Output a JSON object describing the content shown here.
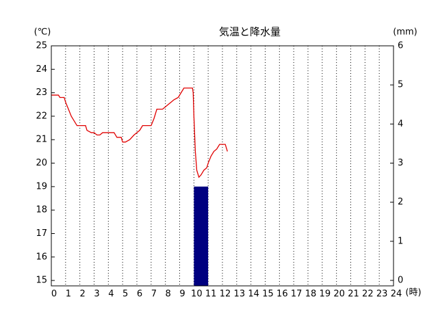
{
  "chart_data": {
    "type": "line_bar",
    "title": "気温と降水量",
    "y_label": "(℃)",
    "y2_label": "(mm)",
    "x_label": "(時)",
    "xlim": [
      0,
      24
    ],
    "xticks": [
      0,
      1,
      2,
      3,
      4,
      5,
      6,
      7,
      8,
      9,
      10,
      11,
      12,
      13,
      14,
      15,
      16,
      17,
      18,
      19,
      20,
      21,
      22,
      23,
      24
    ],
    "ylim": [
      14.77,
      25
    ],
    "yticks": [
      15,
      16,
      17,
      18,
      19,
      20,
      21,
      22,
      23,
      24,
      25
    ],
    "y2lim": [
      -0.14,
      6
    ],
    "y2ticks": [
      0,
      1,
      2,
      3,
      4,
      5,
      6
    ],
    "grid": true,
    "series": [
      {
        "type": "line",
        "color": "#e00000",
        "x": [
          0,
          0.5,
          0.6,
          0.9,
          1.0,
          1.2,
          1.4,
          1.6,
          1.8,
          2.0,
          2.4,
          2.5,
          2.8,
          3.0,
          3.2,
          3.4,
          3.6,
          4.0,
          4.4,
          4.6,
          4.9,
          5.0,
          5.2,
          5.5,
          5.8,
          6.0,
          6.2,
          6.4,
          6.8,
          7.0,
          7.2,
          7.4,
          7.8,
          8.0,
          8.2,
          8.4,
          8.6,
          8.9,
          9.1,
          9.3,
          9.9,
          9.95,
          10.0,
          10.1,
          10.2,
          10.35,
          10.5,
          10.7,
          10.9,
          11.0,
          11.2,
          11.4,
          11.6,
          11.8,
          12.2,
          12.3,
          12.35
        ],
        "values": [
          22.9,
          22.9,
          22.8,
          22.8,
          22.6,
          22.3,
          22.0,
          21.8,
          21.6,
          21.6,
          21.6,
          21.4,
          21.3,
          21.3,
          21.2,
          21.2,
          21.3,
          21.3,
          21.3,
          21.1,
          21.1,
          20.9,
          20.9,
          21.0,
          21.2,
          21.3,
          21.4,
          21.6,
          21.6,
          21.6,
          21.9,
          22.3,
          22.3,
          22.4,
          22.5,
          22.6,
          22.7,
          22.8,
          23.0,
          23.2,
          23.2,
          23.0,
          22.0,
          20.5,
          19.7,
          19.4,
          19.5,
          19.7,
          19.8,
          20.0,
          20.3,
          20.5,
          20.6,
          20.8,
          20.8,
          20.6,
          20.5
        ]
      },
      {
        "type": "bar",
        "axis": "y2",
        "color": "#000080",
        "x": [
          10
        ],
        "width": 1,
        "values": [
          2.4
        ]
      }
    ]
  }
}
